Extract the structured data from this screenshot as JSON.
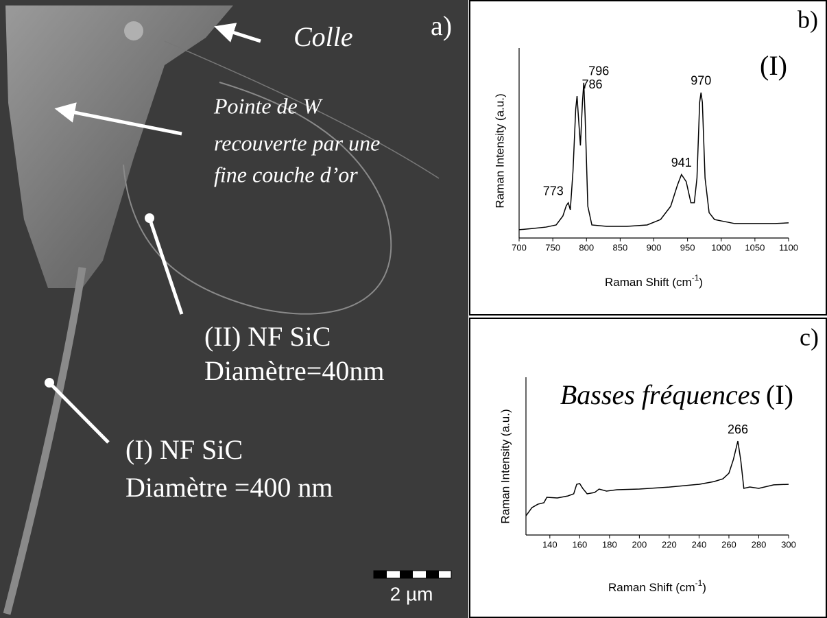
{
  "image": {
    "panel_label": "a)",
    "annotations": [
      {
        "lines": [
          "Colle"
        ]
      },
      {
        "lines": [
          "Pointe de W",
          "recouverte par une",
          "fine couche d’or"
        ]
      },
      {
        "lines": [
          "(II) NF SiC",
          "Diamètre=40nm"
        ]
      },
      {
        "lines": [
          "(I) NF SiC",
          "Diamètre =400 nm"
        ]
      }
    ],
    "scale_bar": "2 µm"
  },
  "chart_data": [
    {
      "type": "line",
      "panel_label": "b)",
      "label": "(I)",
      "x_label": [
        "Raman Shift (cm",
        "-1",
        ")"
      ],
      "y_label": "Raman Intensity (a.u.)",
      "color": "#000000",
      "x": [
        700,
        720,
        740,
        755,
        765,
        770,
        773,
        776,
        780,
        784,
        786,
        788,
        791,
        794,
        796,
        798,
        802,
        808,
        830,
        860,
        890,
        910,
        925,
        935,
        941,
        948,
        955,
        960,
        964,
        968,
        970,
        972,
        976,
        982,
        990,
        1000,
        1020,
        1050,
        1080,
        1100
      ],
      "values": [
        4.7,
        5.4,
        6.2,
        7.4,
        12.5,
        18.3,
        20,
        16,
        38,
        73,
        80.5,
        69,
        52.5,
        77,
        88,
        69,
        18,
        7.4,
        6.6,
        6.6,
        7.4,
        10.5,
        18,
        30,
        36,
        32,
        20,
        20,
        34,
        77,
        82.5,
        77,
        34,
        14.4,
        10.5,
        9.7,
        8.2,
        8.2,
        8.2,
        8.6
      ],
      "xlim": [
        700,
        1100
      ],
      "xticks": [
        700,
        750,
        800,
        850,
        900,
        950,
        1000,
        1050,
        1100
      ],
      "ylim": [
        0,
        100
      ],
      "peak_labels": [
        773,
        786,
        796,
        941,
        970
      ]
    },
    {
      "type": "line",
      "panel_label": "c)",
      "annotation": "Basses fréquences",
      "label": "(I)",
      "x_label": [
        "Raman Shift (cm",
        "-1",
        ")"
      ],
      "y_label": "Raman Intensity (a.u.)",
      "color": "#000000",
      "x": [
        124,
        128,
        132,
        136,
        138,
        145,
        152,
        156,
        158,
        160,
        162,
        165,
        170,
        173,
        178,
        185,
        200,
        220,
        240,
        250,
        256,
        260,
        263,
        266,
        268,
        270,
        274,
        280,
        290,
        300
      ],
      "values": [
        13.3,
        19,
        21.4,
        22.4,
        26.2,
        25.7,
        27.1,
        28.6,
        35.2,
        35.7,
        32.4,
        28.6,
        29.5,
        31.9,
        30.5,
        31.4,
        31.9,
        33.3,
        35.2,
        37.1,
        39,
        42.9,
        52.4,
        65.2,
        51.4,
        32.4,
        33.3,
        32.4,
        34.8,
        35.2
      ],
      "xlim": [
        124,
        300
      ],
      "xticks": [
        140,
        160,
        180,
        200,
        220,
        240,
        260,
        280,
        300
      ],
      "ylim": [
        0,
        100
      ],
      "peak_labels": [
        266
      ]
    }
  ]
}
